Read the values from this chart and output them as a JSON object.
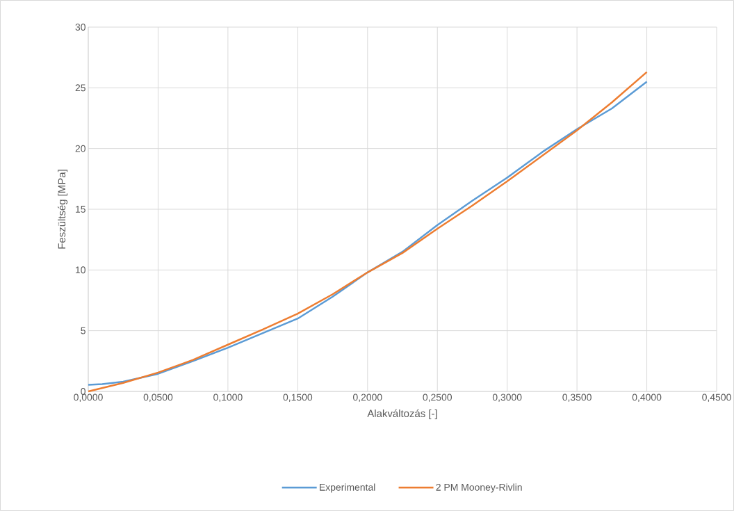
{
  "chart_data": {
    "type": "line",
    "xlabel": "Alakváltozás [-]",
    "ylabel": "Feszültség [MPa]",
    "xlim": [
      0,
      0.45
    ],
    "ylim": [
      0,
      30
    ],
    "xticks": [
      {
        "value": 0,
        "label": "0,0000"
      },
      {
        "value": 0.05,
        "label": "0,0500"
      },
      {
        "value": 0.1,
        "label": "0,1000"
      },
      {
        "value": 0.15,
        "label": "0,1500"
      },
      {
        "value": 0.2,
        "label": "0,2000"
      },
      {
        "value": 0.25,
        "label": "0,2500"
      },
      {
        "value": 0.3,
        "label": "0,3000"
      },
      {
        "value": 0.35,
        "label": "0,3500"
      },
      {
        "value": 0.4,
        "label": "0,4000"
      },
      {
        "value": 0.45,
        "label": "0,4500"
      }
    ],
    "yticks": [
      0,
      5,
      10,
      15,
      20,
      25,
      30
    ],
    "grid": true,
    "legend": "bottom",
    "marker": "none",
    "line_style": "solid",
    "series": [
      {
        "name": "Experimental",
        "color": "#5b9bd5",
        "x": [
          0,
          0.01,
          0.025,
          0.05,
          0.075,
          0.1,
          0.125,
          0.15,
          0.175,
          0.2,
          0.225,
          0.25,
          0.275,
          0.3,
          0.325,
          0.35,
          0.375,
          0.4
        ],
        "values": [
          0.55,
          0.6,
          0.8,
          1.45,
          2.5,
          3.6,
          4.8,
          6.0,
          7.8,
          9.8,
          11.5,
          13.7,
          15.7,
          17.6,
          19.7,
          21.6,
          23.3,
          25.5
        ]
      },
      {
        "name": "2 PM Mooney-Rivlin",
        "color": "#ed7d31",
        "x": [
          0,
          0.025,
          0.05,
          0.075,
          0.1,
          0.125,
          0.15,
          0.175,
          0.2,
          0.225,
          0.25,
          0.275,
          0.3,
          0.325,
          0.35,
          0.375,
          0.4
        ],
        "values": [
          0,
          0.7,
          1.55,
          2.6,
          3.85,
          5.1,
          6.4,
          8.0,
          9.8,
          11.4,
          13.4,
          15.3,
          17.3,
          19.4,
          21.5,
          23.8,
          26.3
        ]
      }
    ]
  }
}
